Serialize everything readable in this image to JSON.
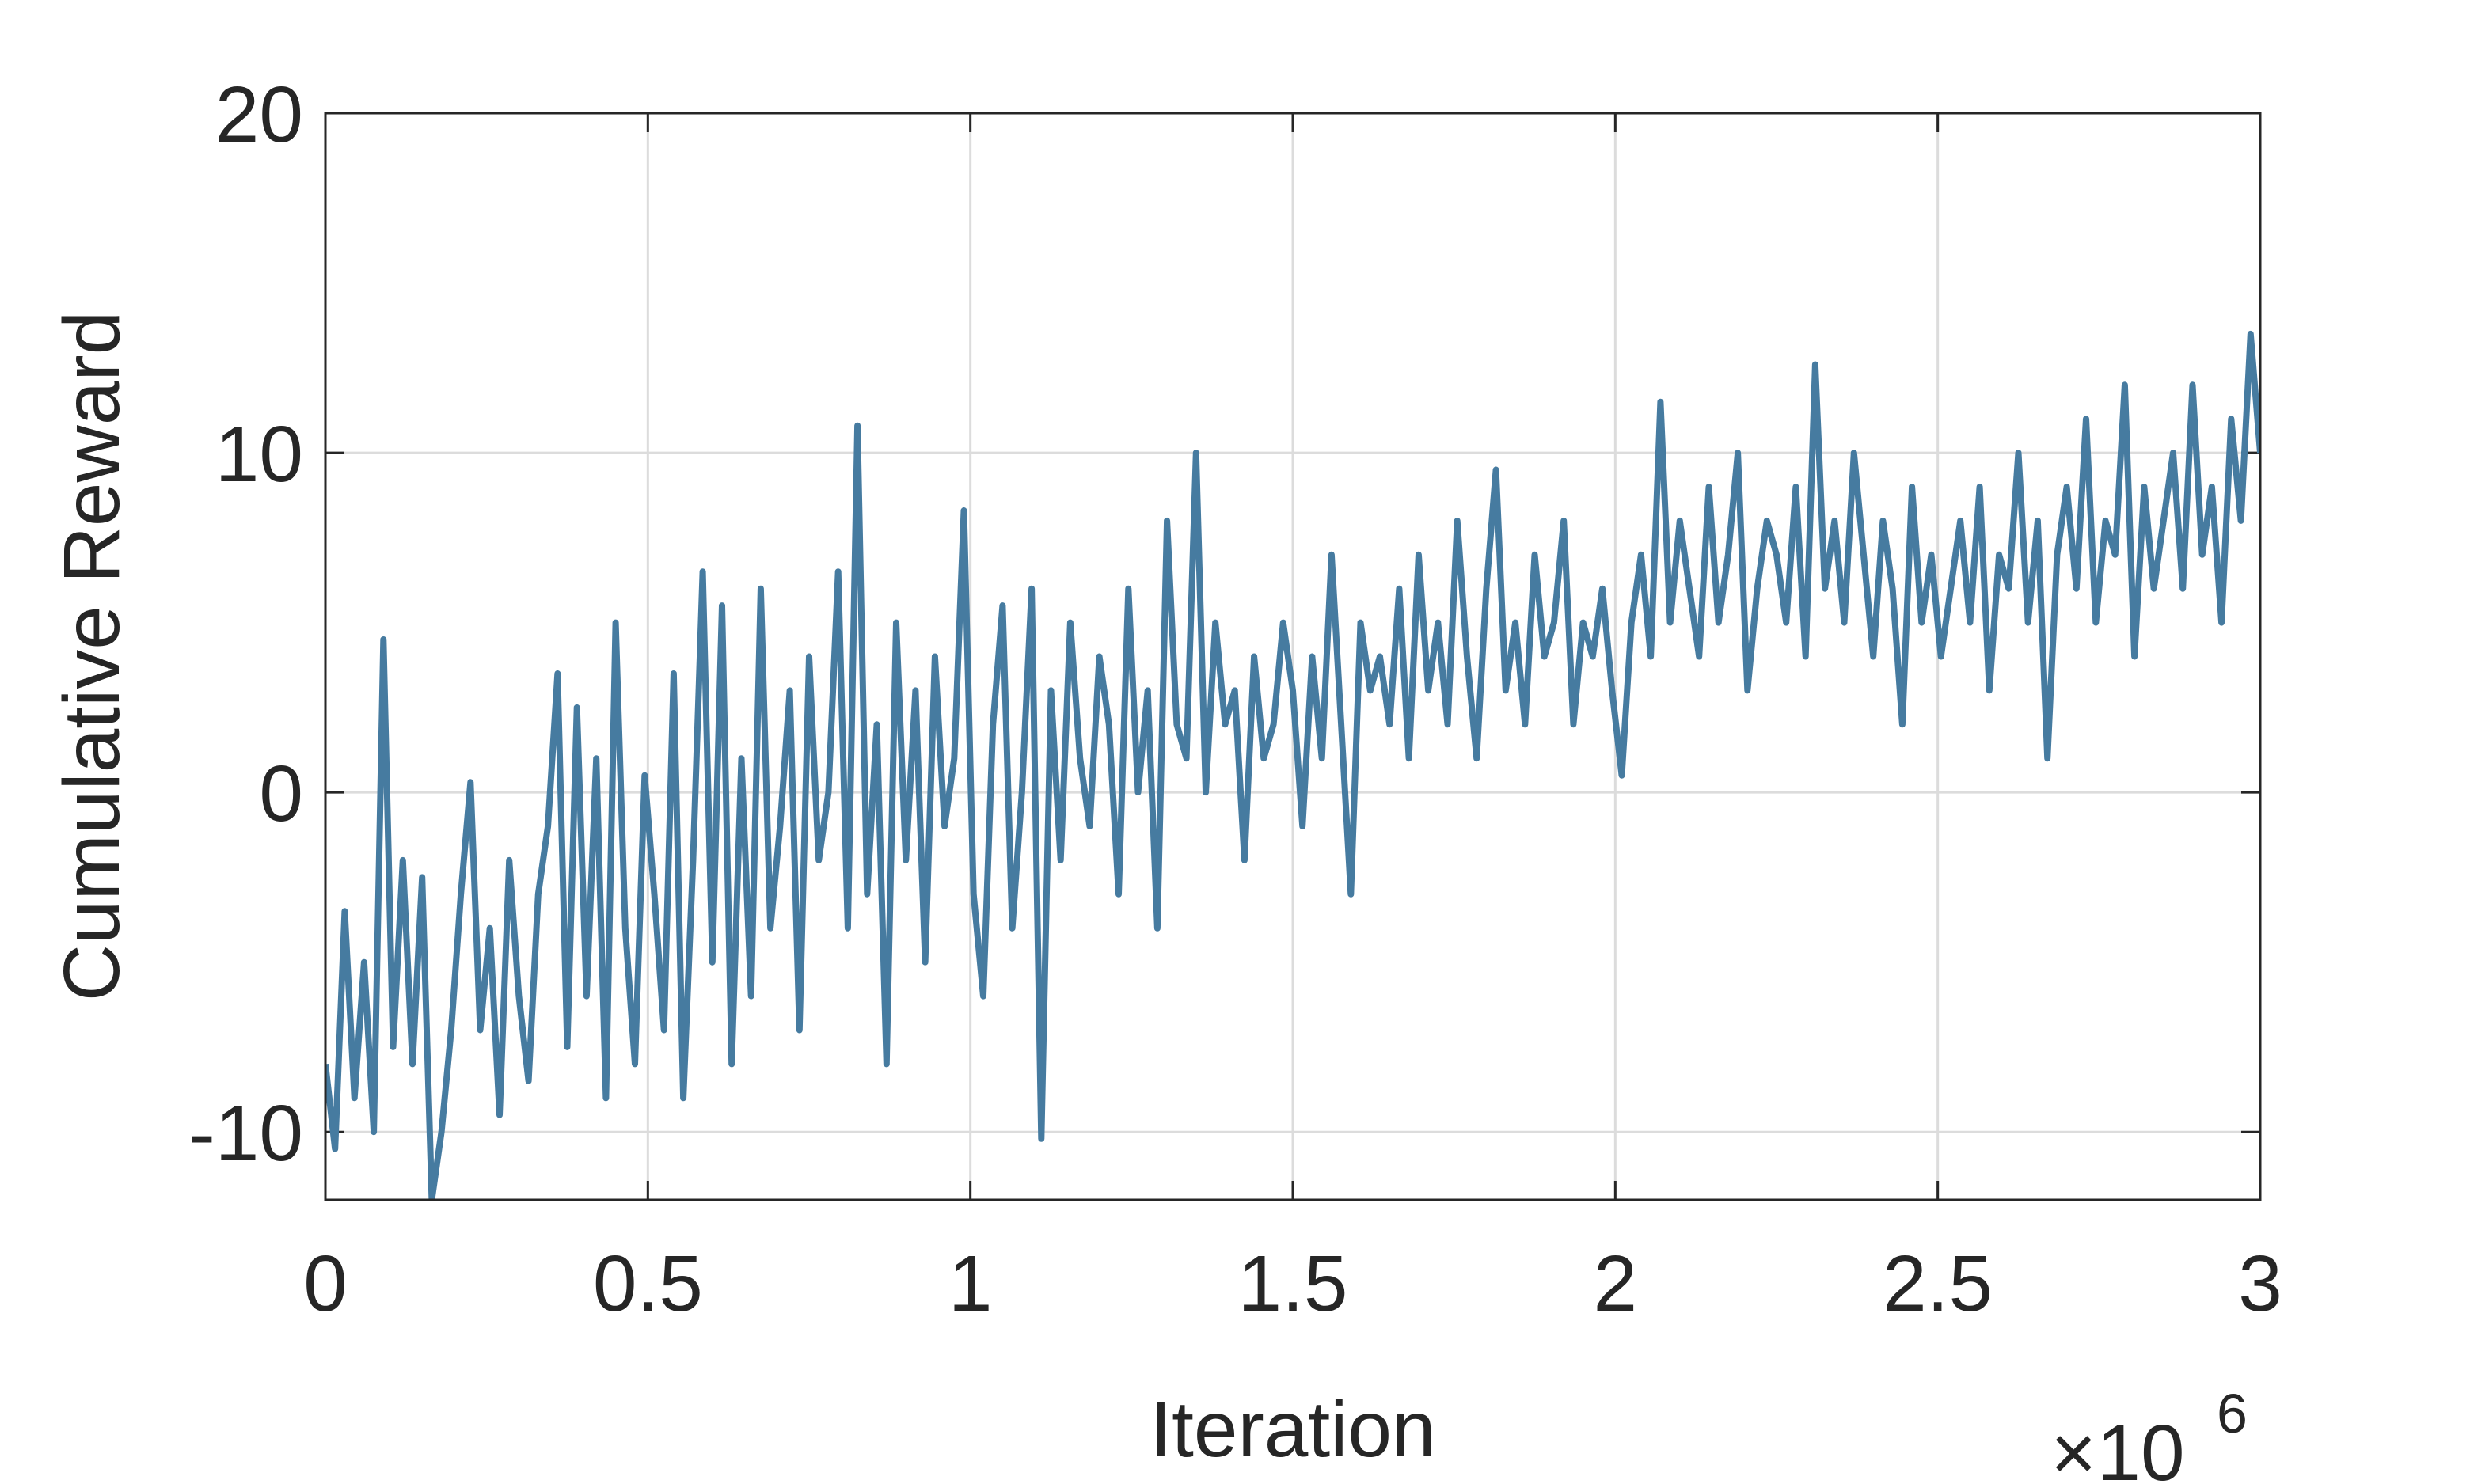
{
  "chart_data": {
    "type": "line",
    "xlabel": "Iteration",
    "ylabel": "Cumulative Reward",
    "x_exponent": {
      "base": "×10",
      "power": "6"
    },
    "xlim": [
      0,
      3000000
    ],
    "xticks": [
      0,
      {
        "value": 500000,
        "label": "0.5"
      },
      {
        "value": 1000000,
        "label": "1"
      },
      {
        "value": 1500000,
        "label": "1.5"
      },
      {
        "value": 2000000,
        "label": "2"
      },
      {
        "value": 2500000,
        "label": "2.5"
      },
      {
        "value": 3000000,
        "label": "3"
      }
    ],
    "ylim": [
      -12,
      20
    ],
    "yticks": [
      -10,
      0,
      10,
      20
    ],
    "grid": true,
    "series": [
      {
        "color": "#467ba0",
        "x": [
          0,
          15000,
          30000,
          45000,
          60000,
          75000,
          90000,
          105000,
          120000,
          135000,
          150000,
          165000,
          180000,
          195000,
          210000,
          225000,
          240000,
          255000,
          270000,
          285000,
          300000,
          315000,
          330000,
          345000,
          360000,
          375000,
          390000,
          405000,
          420000,
          435000,
          450000,
          465000,
          480000,
          495000,
          510000,
          525000,
          540000,
          555000,
          570000,
          585000,
          600000,
          615000,
          630000,
          645000,
          660000,
          675000,
          690000,
          705000,
          720000,
          735000,
          750000,
          765000,
          780000,
          795000,
          810000,
          825000,
          840000,
          855000,
          870000,
          885000,
          900000,
          915000,
          930000,
          945000,
          960000,
          975000,
          990000,
          1005000,
          1020000,
          1035000,
          1050000,
          1065000,
          1080000,
          1095000,
          1110000,
          1125000,
          1140000,
          1155000,
          1170000,
          1185000,
          1200000,
          1215000,
          1230000,
          1245000,
          1260000,
          1275000,
          1290000,
          1305000,
          1320000,
          1335000,
          1350000,
          1365000,
          1380000,
          1395000,
          1410000,
          1425000,
          1440000,
          1455000,
          1470000,
          1485000,
          1500000,
          1515000,
          1530000,
          1545000,
          1560000,
          1575000,
          1590000,
          1605000,
          1620000,
          1635000,
          1650000,
          1665000,
          1680000,
          1695000,
          1710000,
          1725000,
          1740000,
          1755000,
          1770000,
          1785000,
          1800000,
          1815000,
          1830000,
          1845000,
          1860000,
          1875000,
          1890000,
          1905000,
          1920000,
          1935000,
          1950000,
          1965000,
          1980000,
          1995000,
          2010000,
          2025000,
          2040000,
          2055000,
          2070000,
          2085000,
          2100000,
          2115000,
          2130000,
          2145000,
          2160000,
          2175000,
          2190000,
          2205000,
          2220000,
          2235000,
          2250000,
          2265000,
          2280000,
          2295000,
          2310000,
          2325000,
          2340000,
          2355000,
          2370000,
          2385000,
          2400000,
          2415000,
          2430000,
          2445000,
          2460000,
          2475000,
          2490000,
          2505000,
          2520000,
          2535000,
          2550000,
          2565000,
          2580000,
          2595000,
          2610000,
          2625000,
          2640000,
          2655000,
          2670000,
          2685000,
          2700000,
          2715000,
          2730000,
          2745000,
          2760000,
          2775000,
          2790000,
          2805000,
          2820000,
          2835000,
          2850000,
          2865000,
          2880000,
          2895000,
          2910000,
          2925000,
          2940000,
          2955000,
          2970000,
          2985000,
          3000000
        ],
        "values": [
          -8,
          -10.5,
          -3.5,
          -9,
          -5,
          -10,
          4.5,
          -7.5,
          -2,
          -8,
          -2.5,
          -12,
          -10,
          -7,
          -3,
          0.3,
          -7,
          -4,
          -9.5,
          -2,
          -6,
          -8.5,
          -3,
          -1,
          3.5,
          -7.5,
          2.5,
          -6,
          1,
          -9,
          5,
          -4,
          -8,
          0.5,
          -3,
          -7,
          3.5,
          -9,
          -2,
          6.5,
          -5,
          5.5,
          -8,
          1,
          -6,
          6,
          -4,
          -1,
          3,
          -7,
          4,
          -2,
          0,
          6.5,
          -4,
          10.8,
          -3,
          2,
          -8,
          5,
          -2,
          3,
          -5,
          4,
          -1,
          1,
          8.3,
          -3,
          -6,
          2,
          5.5,
          -4,
          0,
          6,
          -10.2,
          3,
          -2,
          5,
          1,
          -1,
          4,
          2,
          -3,
          6,
          0,
          3,
          -4,
          8,
          2,
          1,
          10,
          0,
          5,
          2,
          3,
          -2,
          4,
          1,
          2,
          5,
          3,
          -1,
          4,
          1,
          7,
          2,
          -3,
          5,
          3,
          4,
          2,
          6,
          1,
          7,
          3,
          5,
          2,
          8,
          4,
          1,
          6,
          9.5,
          3,
          5,
          2,
          7,
          4,
          5,
          8,
          2,
          5,
          4,
          6,
          3,
          0.5,
          5,
          7,
          4,
          11.5,
          5,
          8,
          6,
          4,
          9,
          5,
          7,
          10,
          3,
          6,
          8,
          7,
          5,
          9,
          4,
          12.6,
          6,
          8,
          5,
          10,
          7,
          4,
          8,
          6,
          2,
          9,
          5,
          7,
          4,
          6,
          8,
          5,
          9,
          3,
          7,
          6,
          10,
          5,
          8,
          1,
          7,
          9,
          6,
          11,
          5,
          8,
          7,
          12,
          4,
          9,
          6,
          8,
          10,
          6,
          12,
          7,
          9,
          5,
          11,
          8,
          13.5,
          10
        ]
      }
    ]
  }
}
